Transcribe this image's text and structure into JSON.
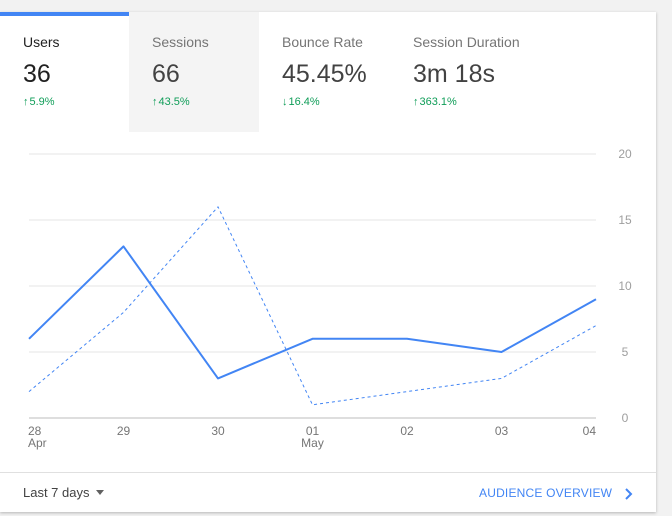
{
  "tabs": [
    {
      "label": "Users",
      "value": "36",
      "change": "5.9%",
      "direction": "up"
    },
    {
      "label": "Sessions",
      "value": "66",
      "change": "43.5%",
      "direction": "up"
    },
    {
      "label": "Bounce Rate",
      "value": "45.45%",
      "change": "16.4%",
      "direction": "down"
    },
    {
      "label": "Session Duration",
      "value": "3m 18s",
      "change": "363.1%",
      "direction": "up"
    }
  ],
  "chart_data": {
    "type": "line",
    "categories": [
      "28\nApr",
      "29",
      "30",
      "01\nMay",
      "02",
      "03",
      "04"
    ],
    "y_ticks": [
      "20",
      "15",
      "10",
      "5",
      "0"
    ],
    "ylim": [
      0,
      20
    ],
    "grid": true,
    "y_axis_side": "right",
    "series": [
      {
        "style": "solid",
        "color": "#4285f4",
        "values": [
          6,
          13,
          3,
          6,
          6,
          5,
          9
        ]
      },
      {
        "style": "dashed",
        "color": "#4285f4",
        "values": [
          2,
          8,
          16,
          1,
          2,
          3,
          7
        ]
      }
    ]
  },
  "footer": {
    "date_range": "Last 7 days",
    "link_label": "AUDIENCE OVERVIEW"
  },
  "colors": {
    "accent": "#4285f4",
    "positive": "#0f9d58"
  },
  "icons": {
    "up": "arrow-up-icon",
    "down": "arrow-down-icon",
    "dropdown": "caret-down-icon",
    "link": "chevron-right-icon"
  }
}
